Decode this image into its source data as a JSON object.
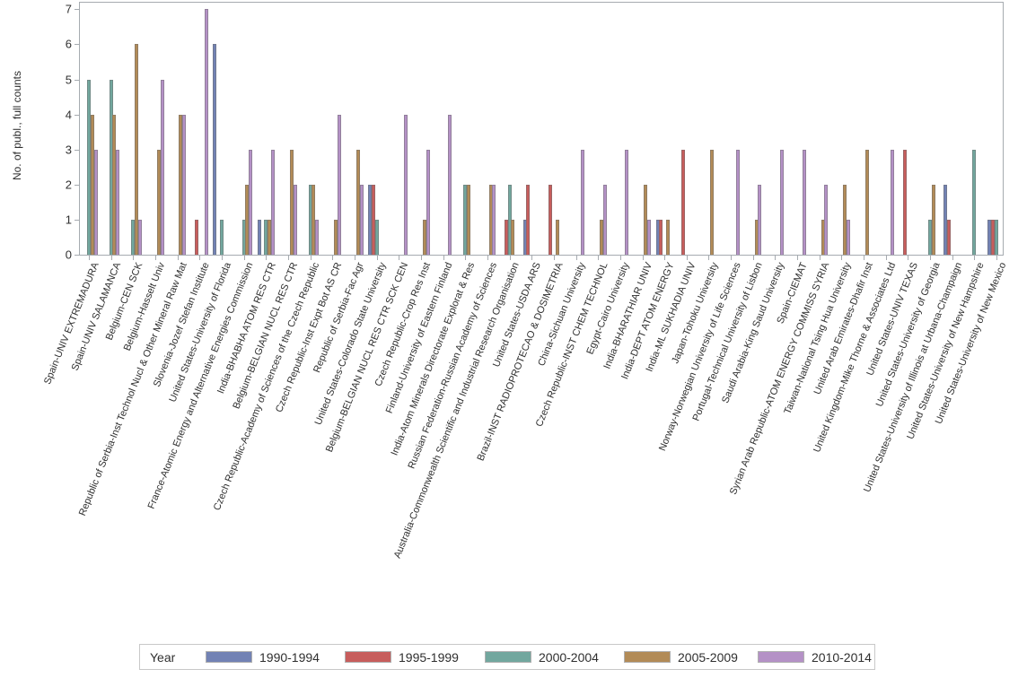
{
  "chart_data": {
    "type": "bar",
    "title": "",
    "ylabel": "No. of publ., full counts",
    "xlabel": "",
    "ylim": [
      0,
      7
    ],
    "yticks": [
      0,
      1,
      2,
      3,
      4,
      5,
      6,
      7
    ],
    "grid": false,
    "legend_title": "Year",
    "legend_position": "bottom",
    "series": [
      {
        "name": "1990-1994",
        "color": "#7282b4"
      },
      {
        "name": "1995-1999",
        "color": "#c75d5c"
      },
      {
        "name": "2000-2004",
        "color": "#72a79e"
      },
      {
        "name": "2005-2009",
        "color": "#b28b57"
      },
      {
        "name": "2010-2014",
        "color": "#b491c6"
      }
    ],
    "categories": [
      "Spain-UNIV EXTREMADURA",
      "Spain-UNIV SALAMANCA",
      "Belgium-CEN SCK",
      "Belgium-Hasselt Univ",
      "Republic of Serbia-Inst Technol Nucl & Other Mineral Raw Mat",
      "Slovenia-Jozef Stefan Institute",
      "United States-University of Florida",
      "France-Atomic Energy and Alternative Energies Commission",
      "India-BHABHA ATOM RES CTR",
      "Belgium-BELGIAN NUCL RES CTR",
      "Czech Republic-Academy of Sciences of the Czech Republic",
      "Czech Republic-Inst Expt Bot AS CR",
      "Republic of Serbia-Fac Agr",
      "United States-Colorado State University",
      "Belgium-BELGIAN NUCL RES CTR SCK CEN",
      "Czech Republic-Crop Res Inst",
      "Finland-University of Eastern Finland",
      "India-Atom Minerals Directorate Explorat & Res",
      "Russian Federation-Russian Academy of Sciences",
      "Australia-Commonwealth Scientific and Industrial Research Organisation",
      "United States-USDA ARS",
      "Brazil-INST RADIOPROTECAO & DOSIMETRIA",
      "China-Sichuan University",
      "Czech Republic-INST CHEM TECHNOL",
      "Egypt-Cairo University",
      "India-BHARATHIAR UNIV",
      "India-DEPT ATOM ENERGY",
      "India-ML SUKHADIA UNIV",
      "Japan-Tohoku University",
      "Norway-Norwegian University of Life Sciences",
      "Portugal-Technical University of Lisbon",
      "Saudi Arabia-King Saud University",
      "Spain-CIEMAT",
      "Syrian Arab Republic-ATOM ENERGY COMMISS SYRIA",
      "Taiwan-National Tsing Hua University",
      "United Arab Emirates-Dhafir Inst",
      "United Kingdom-Mike Thorne & Associates Ltd",
      "United States-UNIV TEXAS",
      "United States-University of Georgia",
      "United States-University of Illinois at Urbana-Champaign",
      "United States-University of New Hampshire",
      "United States-University of New Mexico"
    ],
    "values": [
      [
        0,
        0,
        5,
        4,
        3
      ],
      [
        0,
        0,
        5,
        4,
        3
      ],
      [
        0,
        0,
        1,
        6,
        1
      ],
      [
        0,
        0,
        0,
        3,
        5
      ],
      [
        0,
        0,
        0,
        4,
        4
      ],
      [
        0,
        1,
        0,
        0,
        7
      ],
      [
        6,
        0,
        1,
        0,
        0
      ],
      [
        0,
        0,
        1,
        2,
        3
      ],
      [
        1,
        0,
        1,
        1,
        3
      ],
      [
        0,
        0,
        0,
        3,
        2
      ],
      [
        0,
        0,
        2,
        2,
        1
      ],
      [
        0,
        0,
        0,
        1,
        4
      ],
      [
        0,
        0,
        0,
        3,
        2
      ],
      [
        2,
        2,
        1,
        0,
        0
      ],
      [
        0,
        0,
        0,
        0,
        4
      ],
      [
        0,
        0,
        0,
        1,
        3
      ],
      [
        0,
        0,
        0,
        0,
        4
      ],
      [
        0,
        0,
        2,
        2,
        0
      ],
      [
        0,
        0,
        0,
        2,
        2
      ],
      [
        0,
        1,
        2,
        1,
        0
      ],
      [
        1,
        2,
        0,
        0,
        0
      ],
      [
        0,
        2,
        0,
        1,
        0
      ],
      [
        0,
        0,
        0,
        0,
        3
      ],
      [
        0,
        0,
        0,
        1,
        2
      ],
      [
        0,
        0,
        0,
        0,
        3
      ],
      [
        0,
        0,
        0,
        2,
        1
      ],
      [
        1,
        1,
        0,
        1,
        0
      ],
      [
        0,
        3,
        0,
        0,
        0
      ],
      [
        0,
        0,
        0,
        3,
        0
      ],
      [
        0,
        0,
        0,
        0,
        3
      ],
      [
        0,
        0,
        0,
        1,
        2
      ],
      [
        0,
        0,
        0,
        0,
        3
      ],
      [
        0,
        0,
        0,
        0,
        3
      ],
      [
        0,
        0,
        0,
        1,
        2
      ],
      [
        0,
        0,
        0,
        2,
        1
      ],
      [
        0,
        0,
        0,
        3,
        0
      ],
      [
        0,
        0,
        0,
        0,
        3
      ],
      [
        0,
        3,
        0,
        0,
        0
      ],
      [
        0,
        0,
        1,
        2,
        0
      ],
      [
        2,
        1,
        0,
        0,
        0
      ],
      [
        0,
        0,
        3,
        0,
        0
      ],
      [
        1,
        1,
        1,
        0,
        0
      ]
    ]
  }
}
